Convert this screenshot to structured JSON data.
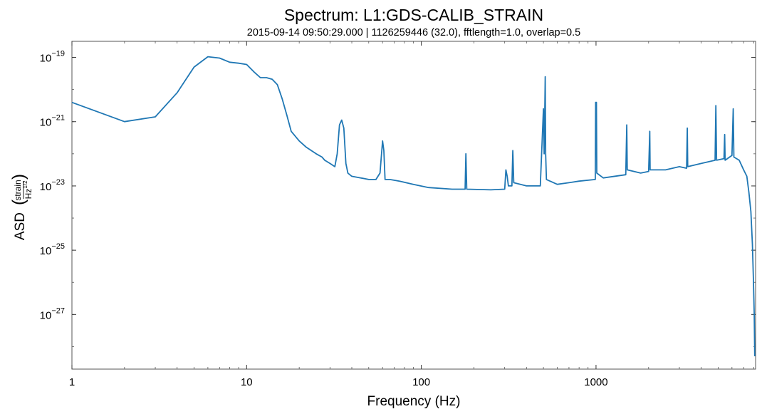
{
  "chart_data": {
    "type": "line",
    "title": "Spectrum: L1:GDS-CALIB_STRAIN",
    "subtitle": "2015-09-14 09:50:29.000 | 1126259446 (32.0), fftlength=1.0, overlap=0.5",
    "xlabel": "Frequency (Hz)",
    "ylabel": "ASD",
    "ylabel_unit_num": "strain",
    "ylabel_unit_den": "Hz",
    "ylabel_unit_den_exp": "1/2",
    "x_scale": "log",
    "y_scale": "log",
    "xlim": [
      1,
      8192
    ],
    "ylim_log10": [
      -28.7,
      -18.5
    ],
    "grid": false,
    "x_ticks": [
      {
        "value": 1,
        "label": "1"
      },
      {
        "value": 10,
        "label": "10"
      },
      {
        "value": 100,
        "label": "100"
      },
      {
        "value": 1000,
        "label": "1000"
      }
    ],
    "y_ticks": [
      {
        "log10": -19,
        "base": "10",
        "exp": "−19"
      },
      {
        "log10": -21,
        "base": "10",
        "exp": "−21"
      },
      {
        "log10": -23,
        "base": "10",
        "exp": "−23"
      },
      {
        "log10": -25,
        "base": "10",
        "exp": "−25"
      },
      {
        "log10": -27,
        "base": "10",
        "exp": "−27"
      }
    ],
    "series": [
      {
        "color": "#1f77b4",
        "points_log10": [
          [
            1,
            -20.4
          ],
          [
            2,
            -21.0
          ],
          [
            3,
            -20.85
          ],
          [
            4,
            -20.1
          ],
          [
            5,
            -19.3
          ],
          [
            6,
            -18.98
          ],
          [
            7,
            -19.02
          ],
          [
            8,
            -19.15
          ],
          [
            9,
            -19.18
          ],
          [
            10,
            -19.22
          ],
          [
            11,
            -19.45
          ],
          [
            12,
            -19.63
          ],
          [
            13,
            -19.63
          ],
          [
            14,
            -19.68
          ],
          [
            15,
            -19.85
          ],
          [
            16,
            -20.3
          ],
          [
            17,
            -20.8
          ],
          [
            18,
            -21.3
          ],
          [
            20,
            -21.6
          ],
          [
            22,
            -21.8
          ],
          [
            25,
            -22.0
          ],
          [
            27,
            -22.1
          ],
          [
            28,
            -22.2
          ],
          [
            30,
            -22.3
          ],
          [
            32,
            -22.4
          ],
          [
            33,
            -22.0
          ],
          [
            34,
            -21.1
          ],
          [
            35,
            -20.95
          ],
          [
            36,
            -21.2
          ],
          [
            37,
            -22.3
          ],
          [
            38,
            -22.6
          ],
          [
            40,
            -22.7
          ],
          [
            45,
            -22.75
          ],
          [
            50,
            -22.8
          ],
          [
            55,
            -22.8
          ],
          [
            58,
            -22.6
          ],
          [
            60,
            -21.6
          ],
          [
            61,
            -21.9
          ],
          [
            62,
            -22.8
          ],
          [
            66,
            -22.8
          ],
          [
            75,
            -22.85
          ],
          [
            90,
            -22.95
          ],
          [
            110,
            -23.05
          ],
          [
            150,
            -23.1
          ],
          [
            178,
            -23.1
          ],
          [
            180,
            -22.0
          ],
          [
            182,
            -23.1
          ],
          [
            250,
            -23.12
          ],
          [
            300,
            -23.1
          ],
          [
            305,
            -22.5
          ],
          [
            310,
            -22.7
          ],
          [
            315,
            -23.0
          ],
          [
            330,
            -23.0
          ],
          [
            334,
            -21.9
          ],
          [
            338,
            -22.9
          ],
          [
            400,
            -23.0
          ],
          [
            480,
            -23.0
          ],
          [
            500,
            -20.6
          ],
          [
            505,
            -22.0
          ],
          [
            510,
            -20.3
          ],
          [
            512,
            -19.6
          ],
          [
            515,
            -22.0
          ],
          [
            520,
            -22.8
          ],
          [
            600,
            -22.95
          ],
          [
            700,
            -22.9
          ],
          [
            800,
            -22.85
          ],
          [
            990,
            -22.8
          ],
          [
            995,
            -20.4
          ],
          [
            1005,
            -20.4
          ],
          [
            1010,
            -22.6
          ],
          [
            1100,
            -22.75
          ],
          [
            1480,
            -22.65
          ],
          [
            1500,
            -21.1
          ],
          [
            1510,
            -22.5
          ],
          [
            1800,
            -22.6
          ],
          [
            2000,
            -22.55
          ],
          [
            2030,
            -21.3
          ],
          [
            2040,
            -22.5
          ],
          [
            2500,
            -22.5
          ],
          [
            3000,
            -22.4
          ],
          [
            3300,
            -22.45
          ],
          [
            3330,
            -21.2
          ],
          [
            3350,
            -22.4
          ],
          [
            4000,
            -22.3
          ],
          [
            4800,
            -22.2
          ],
          [
            4850,
            -20.5
          ],
          [
            4900,
            -22.2
          ],
          [
            5400,
            -22.15
          ],
          [
            5450,
            -21.4
          ],
          [
            5480,
            -22.2
          ],
          [
            6000,
            -22.05
          ],
          [
            6100,
            -20.6
          ],
          [
            6150,
            -22.1
          ],
          [
            6600,
            -22.2
          ],
          [
            7000,
            -22.5
          ],
          [
            7300,
            -22.7
          ],
          [
            7500,
            -23.2
          ],
          [
            7700,
            -23.8
          ],
          [
            7850,
            -24.8
          ],
          [
            7950,
            -25.8
          ],
          [
            8050,
            -27.0
          ],
          [
            8100,
            -28.3
          ]
        ]
      }
    ]
  }
}
